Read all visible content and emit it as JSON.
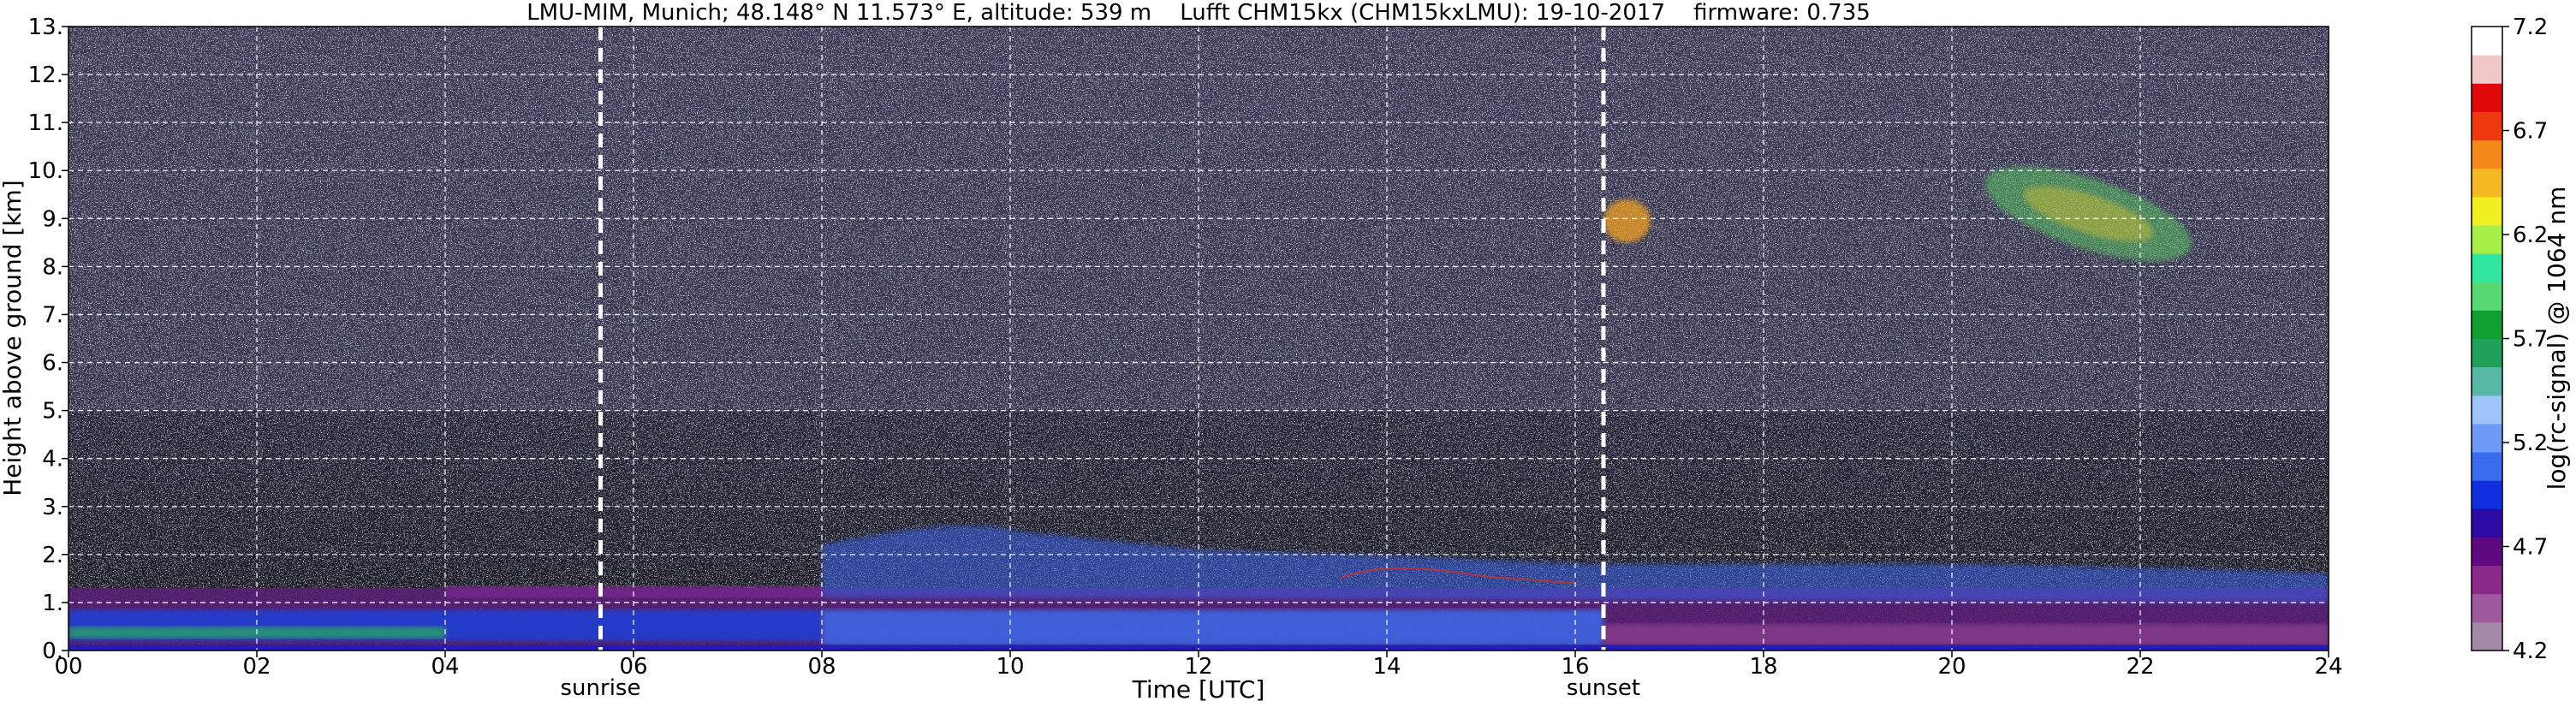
{
  "chart_data": {
    "type": "heatmap",
    "title": "LMU-MIM, Munich; 48.148° N 11.573° E, altitude: 539 m    Lufft CHM15kx (CHM15kxLMU): 19-10-2017    firmware: 0.735",
    "xlabel": "Time [UTC]",
    "ylabel": "Height above ground [km]",
    "xlim": [
      0,
      24
    ],
    "ylim": [
      0,
      13
    ],
    "x_ticks": [
      "00",
      "02",
      "04",
      "06",
      "08",
      "10",
      "12",
      "14",
      "16",
      "18",
      "20",
      "22",
      "24"
    ],
    "x_tick_values": [
      0,
      2,
      4,
      6,
      8,
      10,
      12,
      14,
      16,
      18,
      20,
      22,
      24
    ],
    "y_ticks": [
      "0.",
      "1.",
      "2.",
      "3.",
      "4.",
      "5.",
      "6.",
      "7.",
      "8.",
      "9.",
      "10.",
      "11.",
      "12.",
      "13."
    ],
    "y_tick_values": [
      0,
      1,
      2,
      3,
      4,
      5,
      6,
      7,
      8,
      9,
      10,
      11,
      12,
      13
    ],
    "grid": true,
    "markers": [
      {
        "label": "sunrise",
        "x": 5.65
      },
      {
        "label": "sunset",
        "x": 16.3
      }
    ],
    "colorbar": {
      "label": "log(rc-signal) @ 1064 nm",
      "ticks": [
        "4.2",
        "4.7",
        "5.2",
        "5.7",
        "6.2",
        "6.7",
        "7.2"
      ],
      "tick_values": [
        4.2,
        4.7,
        5.2,
        5.7,
        6.2,
        6.7,
        7.2
      ],
      "range": [
        4.2,
        7.2
      ],
      "colors": [
        "#a48aa8",
        "#9e5a9c",
        "#8c2a8c",
        "#5e0a7e",
        "#2c0aa6",
        "#1030e0",
        "#3a6cf0",
        "#6e9af6",
        "#9cc4fa",
        "#58b8a8",
        "#20a058",
        "#10a030",
        "#58d870",
        "#30e6a0",
        "#a8ee48",
        "#f0f020",
        "#f4b820",
        "#f48818",
        "#f03810",
        "#e00808",
        "#f0c8c8",
        "#ffffff"
      ]
    },
    "features": [
      {
        "name": "boundary layer (blue/purple)",
        "x": [
          0,
          24
        ],
        "y": [
          0,
          1.3
        ]
      },
      {
        "name": "residual / mixed layer (blue)",
        "x": [
          8,
          24
        ],
        "y": [
          1.0,
          2.8
        ]
      },
      {
        "name": "cirrus (evening)",
        "x": [
          16.3,
          16.8
        ],
        "y": [
          8.5,
          9.4
        ]
      },
      {
        "name": "cirrus (night)",
        "x": [
          20.3,
          22.6
        ],
        "y": [
          8.3,
          9.9
        ]
      }
    ]
  }
}
